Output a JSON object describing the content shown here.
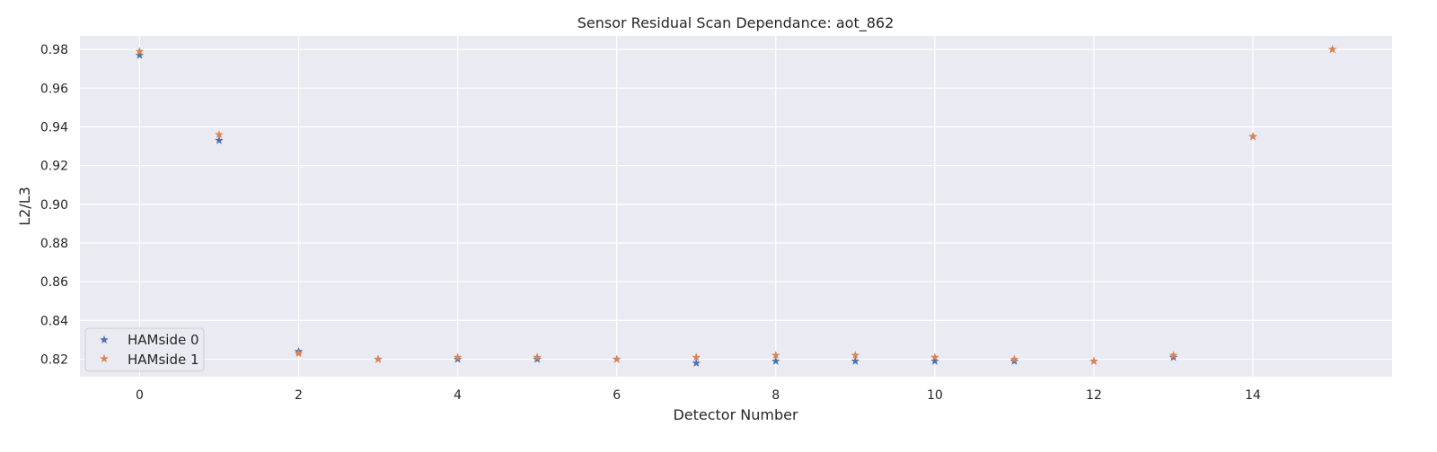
{
  "chart_data": {
    "type": "scatter",
    "title": "Sensor Residual Scan Dependance: aot_862",
    "xlabel": "Detector Number",
    "ylabel": "L2/L3",
    "xlim": [
      -0.75,
      15.75
    ],
    "ylim": [
      0.811,
      0.987
    ],
    "xticks": [
      0,
      2,
      4,
      6,
      8,
      10,
      12,
      14
    ],
    "yticks": [
      0.82,
      0.84,
      0.86,
      0.88,
      0.9,
      0.92,
      0.94,
      0.96,
      0.98
    ],
    "ytick_labels": [
      "0.82",
      "0.84",
      "0.86",
      "0.88",
      "0.90",
      "0.92",
      "0.94",
      "0.96",
      "0.98"
    ],
    "grid": true,
    "legend_position": "lower-left",
    "marker": "star",
    "series": [
      {
        "name": "HAMside 0",
        "color": "#4c72b0",
        "x": [
          0,
          1,
          2,
          3,
          4,
          5,
          6,
          7,
          8,
          9,
          10,
          11,
          12,
          13,
          14,
          15
        ],
        "y": [
          0.977,
          0.933,
          0.824,
          0.82,
          0.82,
          0.82,
          0.82,
          0.818,
          0.819,
          0.819,
          0.819,
          0.819,
          0.819,
          0.821,
          0.935,
          0.98
        ]
      },
      {
        "name": "HAMside 1",
        "color": "#dd8452",
        "x": [
          0,
          1,
          2,
          3,
          4,
          5,
          6,
          7,
          8,
          9,
          10,
          11,
          12,
          13,
          14,
          15
        ],
        "y": [
          0.979,
          0.936,
          0.823,
          0.82,
          0.821,
          0.821,
          0.82,
          0.821,
          0.822,
          0.822,
          0.821,
          0.82,
          0.819,
          0.822,
          0.935,
          0.98
        ]
      }
    ]
  }
}
